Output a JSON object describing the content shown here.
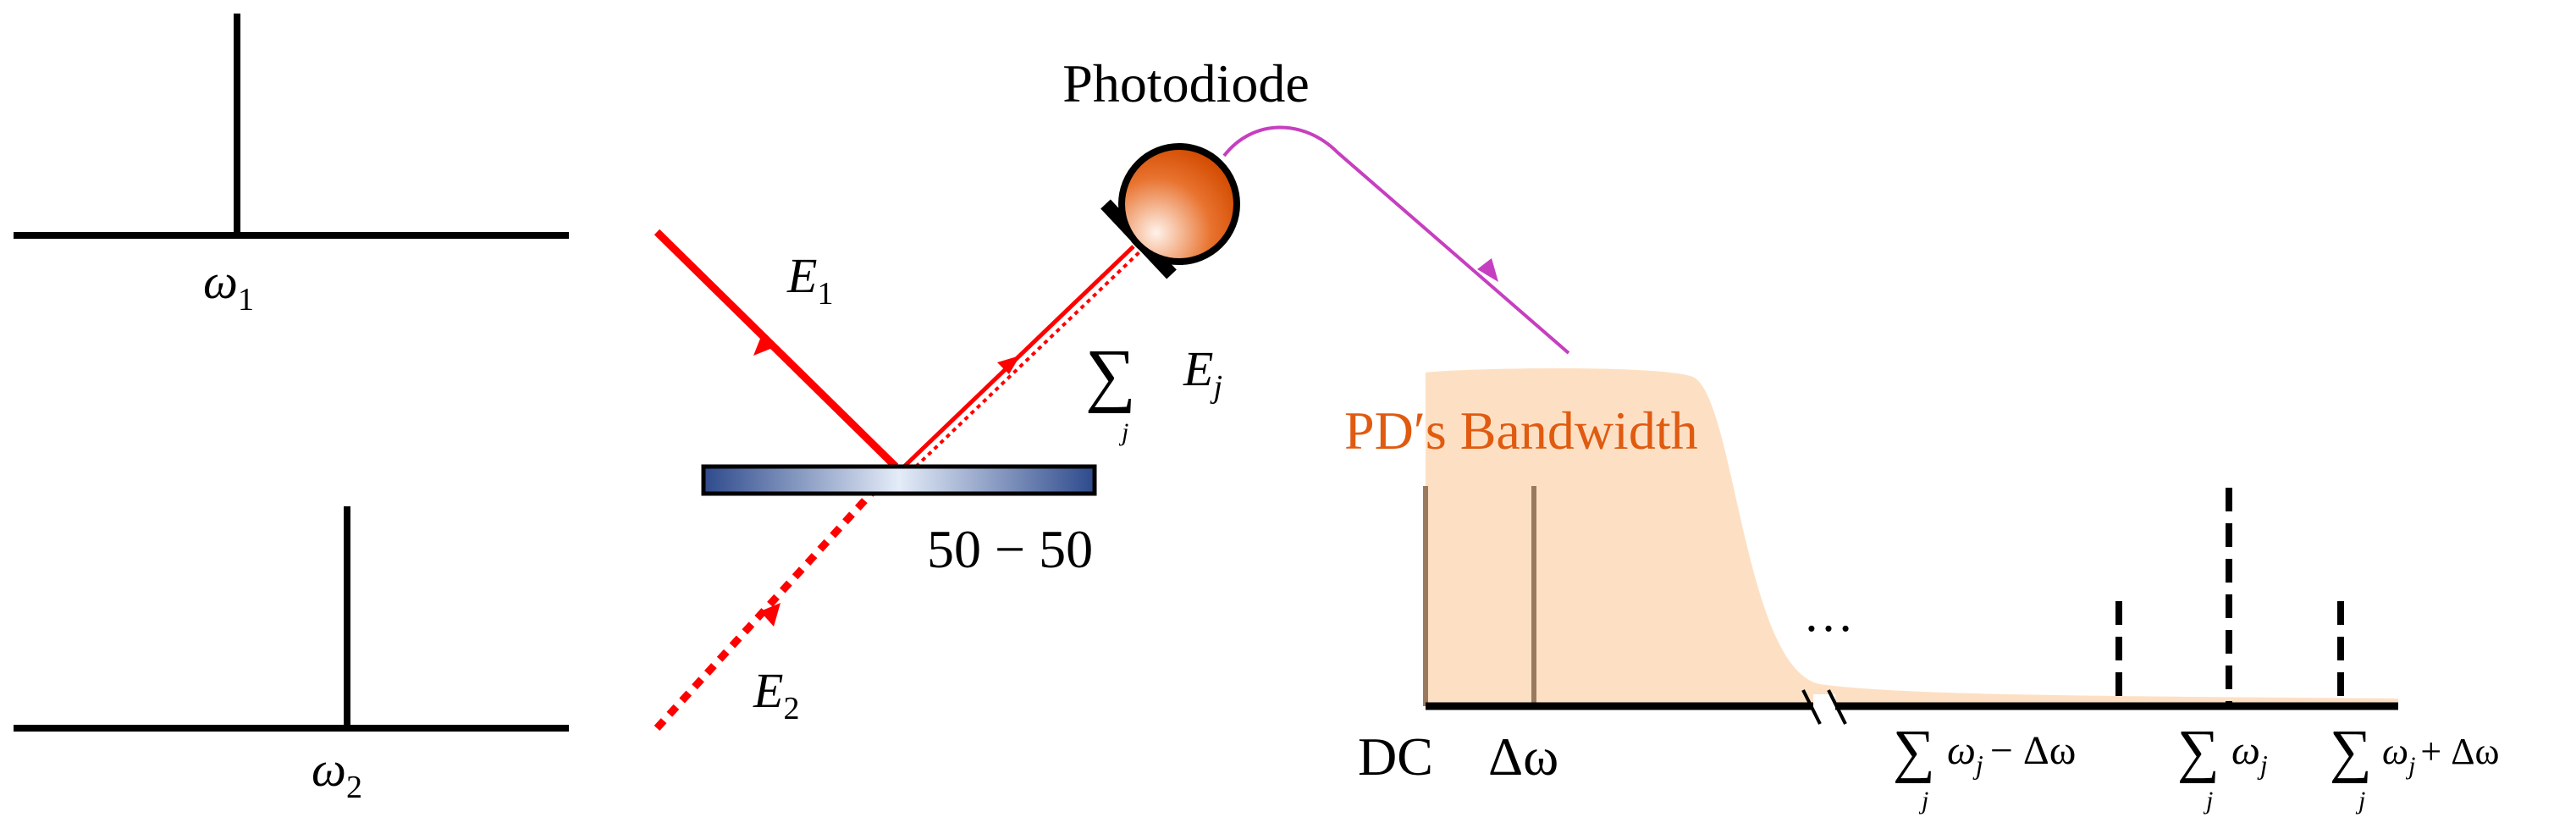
{
  "spectra": [
    {
      "label": {
        "symbol": "ω",
        "subscript": "1"
      }
    },
    {
      "label": {
        "symbol": "ω",
        "subscript": "2"
      }
    }
  ],
  "beams": {
    "input_1": {
      "symbol": "E",
      "subscript": "1"
    },
    "input_2": {
      "symbol": "E",
      "subscript": "2"
    },
    "output": {
      "operator": "∑",
      "index": "j",
      "symbol": "E",
      "subscript": "j"
    }
  },
  "beam_splitter": {
    "ratio": "50 − 50"
  },
  "photodiode": {
    "title": "Photodiode"
  },
  "detection_spectrum": {
    "bandwidth_label": "PD′s Bandwidth",
    "ellipsis": "…",
    "lines": [
      {
        "label": "DC"
      },
      {
        "label": "Δω"
      },
      {
        "label": {
          "operator": "∑",
          "index": "j",
          "symbol": "ω",
          "subscript": "j",
          "suffix": "− Δω"
        }
      },
      {
        "label": {
          "operator": "∑",
          "index": "j",
          "symbol": "ω",
          "subscript": "j"
        }
      },
      {
        "label": {
          "operator": "∑",
          "index": "j",
          "symbol": "ω",
          "subscript": "j",
          "suffix": "+ Δω"
        }
      }
    ]
  }
}
